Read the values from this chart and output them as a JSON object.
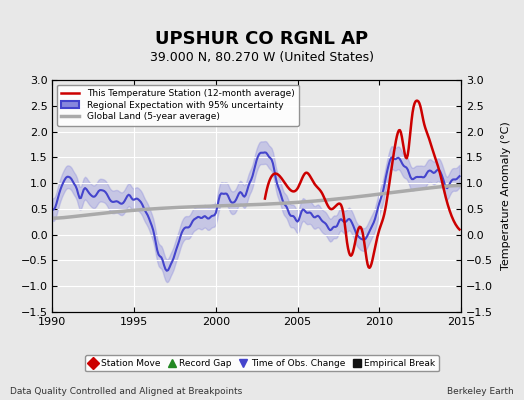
{
  "title": "UPSHUR CO RGNL AP",
  "subtitle": "39.000 N, 80.270 W (United States)",
  "ylabel": "Temperature Anomaly (°C)",
  "xlabel_left": "Data Quality Controlled and Aligned at Breakpoints",
  "xlabel_right": "Berkeley Earth",
  "xlim": [
    1990,
    2015
  ],
  "ylim": [
    -1.5,
    3.0
  ],
  "yticks": [
    -1.5,
    -1.0,
    -0.5,
    0.0,
    0.5,
    1.0,
    1.5,
    2.0,
    2.5,
    3.0
  ],
  "xticks": [
    1990,
    1995,
    2000,
    2005,
    2010,
    2015
  ],
  "bg_color": "#e8e8e8",
  "plot_bg_color": "#e8e8e8",
  "grid_color": "white",
  "legend_items": [
    {
      "label": "This Temperature Station (12-month average)",
      "color": "#cc0000",
      "lw": 1.8
    },
    {
      "label": "Regional Expectation with 95% uncertainty",
      "color": "#4444cc",
      "lw": 1.5
    },
    {
      "label": "Global Land (5-year average)",
      "color": "#aaaaaa",
      "lw": 2.5
    }
  ],
  "marker_legend": [
    {
      "label": "Station Move",
      "color": "#cc0000",
      "marker": "D"
    },
    {
      "label": "Record Gap",
      "color": "#228822",
      "marker": "^"
    },
    {
      "label": "Time of Obs. Change",
      "color": "#4444cc",
      "marker": "v"
    },
    {
      "label": "Empirical Break",
      "color": "#111111",
      "marker": "s"
    }
  ]
}
